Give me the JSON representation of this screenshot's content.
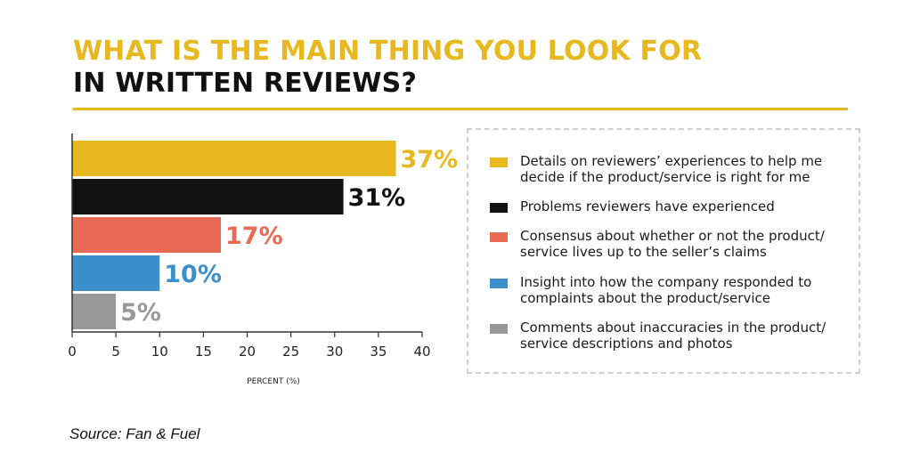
{
  "title_line1": "WHAT IS THE MAIN THING YOU LOOK FOR",
  "title_line2": "IN WRITTEN REVIEWS?",
  "source": "Source: Fan & Fuel",
  "chart_data": {
    "type": "bar",
    "orientation": "horizontal",
    "categories": [
      "Details on reviewers’ experiences to help me decide if the product/service is right for me",
      "Problems reviewers have experienced",
      "Consensus about whether or not the product/ service lives up to the seller’s claims",
      "Insight into how the company responded to complaints about the product/service",
      "Comments about inaccuracies in the product/ service descriptions and photos"
    ],
    "values": [
      37,
      31,
      17,
      10,
      5
    ],
    "data_labels": [
      "37%",
      "31%",
      "17%",
      "10%",
      "5%"
    ],
    "colors": [
      "#E8B820",
      "#111111",
      "#E96A55",
      "#3C8FC8",
      "#999999"
    ],
    "xlabel": "PERCENT (%)",
    "xlim": [
      0,
      40
    ],
    "xticks": [
      0,
      5,
      10,
      15,
      20,
      25,
      30,
      35,
      40
    ],
    "legend_position": "right",
    "grid": false
  }
}
